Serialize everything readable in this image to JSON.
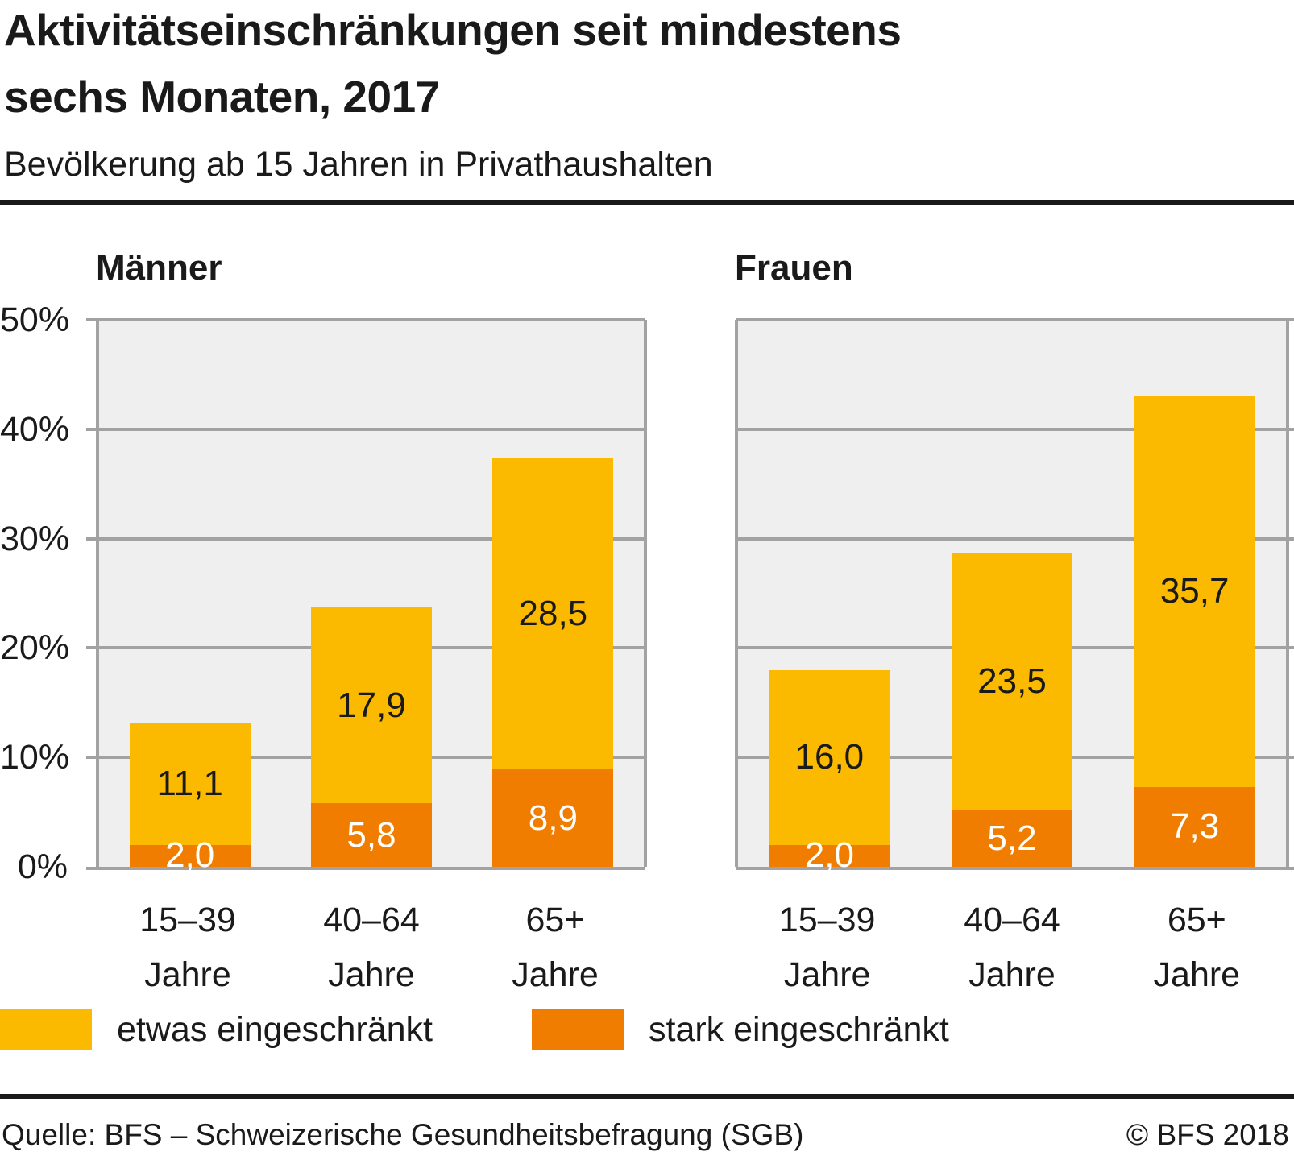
{
  "title_line1": "Aktivitätseinschränkungen seit mindestens",
  "title_line2": "sechs Monaten, 2017",
  "subtitle": "Bevölkerung ab 15 Jahren in Privathaushalten",
  "y_axis": {
    "ticks": [
      "50%",
      "40%",
      "30%",
      "20%",
      "10%",
      "0%"
    ],
    "grid_values": [
      50,
      40,
      30,
      20,
      10,
      0
    ],
    "max": 50
  },
  "legend": [
    {
      "label": "etwas eingeschränkt",
      "color": "#fbba00"
    },
    {
      "label": "stark eingeschränkt",
      "color": "#f07d00"
    }
  ],
  "footer": {
    "source": "Quelle: BFS – Schweizerische Gesundheitsbefragung (SGB)",
    "copyright": "© BFS 2018"
  },
  "colors": {
    "etwas": "#fbba00",
    "stark": "#f07d00",
    "plot_background": "#efefef",
    "gridline": "#a2a2a2",
    "text": "#1a1a1a"
  },
  "chart_data": [
    {
      "type": "bar",
      "stacked": true,
      "title": "Männer",
      "categories": [
        "15–39 Jahre",
        "40–64 Jahre",
        "65+ Jahre"
      ],
      "series": [
        {
          "name": "stark eingeschränkt",
          "color": "#f07d00",
          "values": [
            2.0,
            5.8,
            8.9
          ]
        },
        {
          "name": "etwas eingeschränkt",
          "color": "#fbba00",
          "values": [
            11.1,
            17.9,
            28.5
          ]
        }
      ],
      "totals": [
        13.1,
        23.7,
        37.4
      ],
      "ylim": [
        0,
        50
      ],
      "ylabel": "%",
      "grid": true,
      "legend_position": "bottom"
    },
    {
      "type": "bar",
      "stacked": true,
      "title": "Frauen",
      "categories": [
        "15–39 Jahre",
        "40–64 Jahre",
        "65+ Jahre"
      ],
      "series": [
        {
          "name": "stark eingeschränkt",
          "color": "#f07d00",
          "values": [
            2.0,
            5.2,
            7.3
          ]
        },
        {
          "name": "etwas eingeschränkt",
          "color": "#fbba00",
          "values": [
            16.0,
            23.5,
            35.7
          ]
        }
      ],
      "totals": [
        18.0,
        28.7,
        43.0
      ],
      "ylim": [
        0,
        50
      ],
      "ylabel": "%",
      "grid": true,
      "legend_position": "bottom"
    }
  ]
}
